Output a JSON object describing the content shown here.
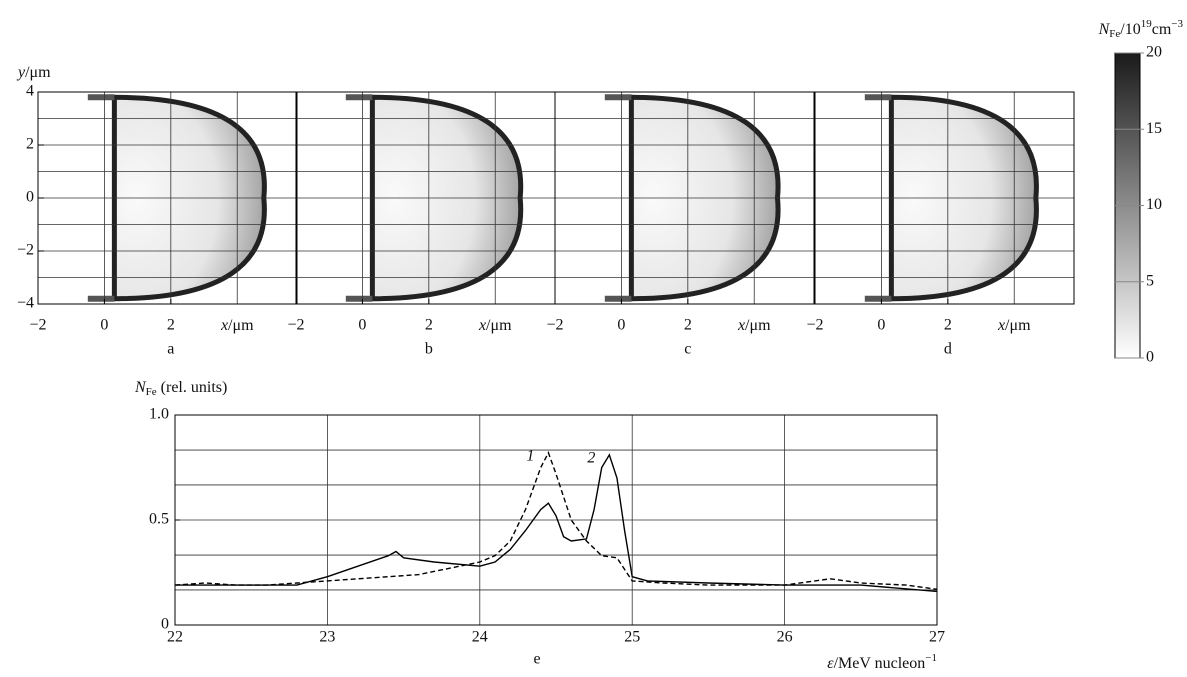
{
  "chart_data": [
    {
      "type": "density-map",
      "panels": [
        "a",
        "b",
        "c",
        "d"
      ],
      "y_label": {
        "symbol": "y",
        "unit": "/μm"
      },
      "x_label": {
        "symbol": "x",
        "unit": "/μm"
      },
      "xlim": [
        -2,
        5.8
      ],
      "xticks": [
        {
          "value": -2,
          "label": "−2"
        },
        0,
        2
      ],
      "xgrid": [
        0,
        2,
        4
      ],
      "ylim": [
        -4,
        4
      ],
      "yticks": [
        {
          "value": -4,
          "label": "−4"
        },
        {
          "value": -2,
          "label": "−2"
        },
        0,
        2,
        4
      ],
      "ygrid": [
        -3,
        -2,
        -1,
        0,
        1,
        2,
        3
      ],
      "colorbar": {
        "label": {
          "symbol": "N",
          "subscript": "Fe",
          "unit": "/10",
          "exp": "19",
          "unit2": "cm",
          "exp2": "−3"
        },
        "lim": [
          0,
          20
        ],
        "ticks": [
          0,
          5,
          10,
          15,
          20
        ],
        "colors": [
          "#ffffff",
          "#1a1a1a"
        ]
      }
    },
    {
      "type": "line",
      "label": "e",
      "y_label": {
        "symbol": "N",
        "subscript": "Fe",
        "rest": " (rel. units)"
      },
      "x_label": {
        "symbol": "ε",
        "unit": "/MeV nucleon",
        "exp": "−1"
      },
      "xlim": [
        22,
        27
      ],
      "xticks": [
        22,
        23,
        24,
        25,
        26,
        27
      ],
      "ylim": [
        0,
        1
      ],
      "yticks": [
        0,
        0.5,
        {
          "value": 1,
          "label": "1.0"
        }
      ],
      "ygrid": [
        0.167,
        0.333,
        0.5,
        0.667,
        0.833
      ],
      "grid": true,
      "series": [
        {
          "name": "1",
          "color": "#000000",
          "dash": true,
          "x": [
            22,
            22.2,
            22.4,
            22.6,
            22.8,
            23,
            23.2,
            23.4,
            23.6,
            23.8,
            24,
            24.1,
            24.2,
            24.3,
            24.4,
            24.45,
            24.5,
            24.6,
            24.7,
            24.8,
            24.9,
            25,
            25.2,
            25.5,
            26,
            26.2,
            26.3,
            26.5,
            26.8,
            27
          ],
          "values": [
            0.19,
            0.2,
            0.19,
            0.19,
            0.2,
            0.21,
            0.22,
            0.23,
            0.24,
            0.27,
            0.3,
            0.33,
            0.4,
            0.55,
            0.75,
            0.82,
            0.72,
            0.5,
            0.4,
            0.33,
            0.32,
            0.21,
            0.2,
            0.19,
            0.19,
            0.21,
            0.22,
            0.2,
            0.19,
            0.17
          ]
        },
        {
          "name": "2",
          "color": "#000000",
          "dash": false,
          "x": [
            22,
            22.2,
            22.4,
            22.6,
            22.8,
            23,
            23.2,
            23.4,
            23.45,
            23.5,
            23.7,
            24,
            24.1,
            24.2,
            24.3,
            24.4,
            24.45,
            24.5,
            24.55,
            24.6,
            24.7,
            24.75,
            24.8,
            24.85,
            24.9,
            24.95,
            25,
            25.1,
            25.5,
            26,
            26.5,
            27
          ],
          "values": [
            0.19,
            0.19,
            0.19,
            0.19,
            0.19,
            0.23,
            0.28,
            0.33,
            0.35,
            0.32,
            0.3,
            0.28,
            0.3,
            0.36,
            0.45,
            0.55,
            0.58,
            0.52,
            0.42,
            0.4,
            0.41,
            0.55,
            0.75,
            0.81,
            0.7,
            0.45,
            0.23,
            0.21,
            0.2,
            0.19,
            0.19,
            0.16
          ]
        }
      ]
    }
  ]
}
